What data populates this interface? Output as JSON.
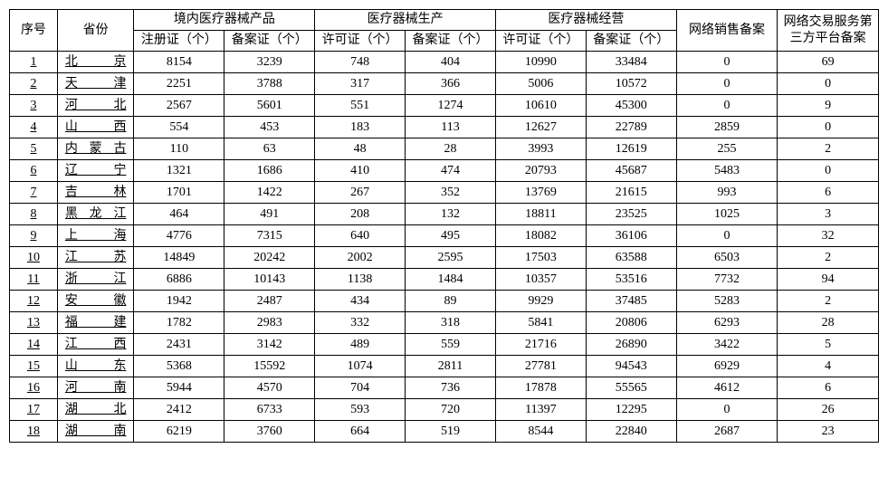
{
  "headers": {
    "seq": "序号",
    "province": "省份",
    "group1": "境内医疗器械产品",
    "group1_sub1": "注册证（个）",
    "group1_sub2": "备案证（个）",
    "group2": "医疗器械生产",
    "group2_sub1": "许可证（个）",
    "group2_sub2": "备案证（个）",
    "group3": "医疗器械经营",
    "group3_sub1": "许可证（个）",
    "group3_sub2": "备案证（个）",
    "net_sales": "网络销售备案",
    "net_platform": "网络交易服务第三方平台备案"
  },
  "styling": {
    "border_color": "#000000",
    "background_color": "#ffffff",
    "font_family": "SimSun",
    "header_fontsize": 14,
    "body_fontsize": 14,
    "col_widths": {
      "seq": 45,
      "province": 72,
      "data": 85,
      "net1": 95,
      "net2": 95
    }
  },
  "rows": [
    {
      "n": 1,
      "prov": "北 京",
      "c": [
        8154,
        3239,
        748,
        404,
        10990,
        33484,
        0,
        69
      ]
    },
    {
      "n": 2,
      "prov": "天 津",
      "c": [
        2251,
        3788,
        317,
        366,
        5006,
        10572,
        0,
        0
      ]
    },
    {
      "n": 3,
      "prov": "河 北",
      "c": [
        2567,
        5601,
        551,
        1274,
        10610,
        45300,
        0,
        9
      ]
    },
    {
      "n": 4,
      "prov": "山 西",
      "c": [
        554,
        453,
        183,
        113,
        12627,
        22789,
        2859,
        0
      ]
    },
    {
      "n": 5,
      "prov": "内蒙古",
      "c": [
        110,
        63,
        48,
        28,
        3993,
        12619,
        255,
        2
      ]
    },
    {
      "n": 6,
      "prov": "辽 宁",
      "c": [
        1321,
        1686,
        410,
        474,
        20793,
        45687,
        5483,
        0
      ]
    },
    {
      "n": 7,
      "prov": "吉 林",
      "c": [
        1701,
        1422,
        267,
        352,
        13769,
        21615,
        993,
        6
      ]
    },
    {
      "n": 8,
      "prov": "黑龙江",
      "c": [
        464,
        491,
        208,
        132,
        18811,
        23525,
        1025,
        3
      ]
    },
    {
      "n": 9,
      "prov": "上 海",
      "c": [
        4776,
        7315,
        640,
        495,
        18082,
        36106,
        0,
        32
      ]
    },
    {
      "n": 10,
      "prov": "江 苏",
      "c": [
        14849,
        20242,
        2002,
        2595,
        17503,
        63588,
        6503,
        2
      ]
    },
    {
      "n": 11,
      "prov": "浙 江",
      "c": [
        6886,
        10143,
        1138,
        1484,
        10357,
        53516,
        7732,
        94
      ]
    },
    {
      "n": 12,
      "prov": "安 徽",
      "c": [
        1942,
        2487,
        434,
        89,
        9929,
        37485,
        5283,
        2
      ]
    },
    {
      "n": 13,
      "prov": "福 建",
      "c": [
        1782,
        2983,
        332,
        318,
        5841,
        20806,
        6293,
        28
      ]
    },
    {
      "n": 14,
      "prov": "江 西",
      "c": [
        2431,
        3142,
        489,
        559,
        21716,
        26890,
        3422,
        5
      ]
    },
    {
      "n": 15,
      "prov": "山 东",
      "c": [
        5368,
        15592,
        1074,
        2811,
        27781,
        94543,
        6929,
        4
      ]
    },
    {
      "n": 16,
      "prov": "河 南",
      "c": [
        5944,
        4570,
        704,
        736,
        17878,
        55565,
        4612,
        6
      ]
    },
    {
      "n": 17,
      "prov": "湖 北",
      "c": [
        2412,
        6733,
        593,
        720,
        11397,
        12295,
        0,
        26
      ]
    },
    {
      "n": 18,
      "prov": "湖 南",
      "c": [
        6219,
        3760,
        664,
        519,
        8544,
        22840,
        2687,
        23
      ]
    }
  ]
}
